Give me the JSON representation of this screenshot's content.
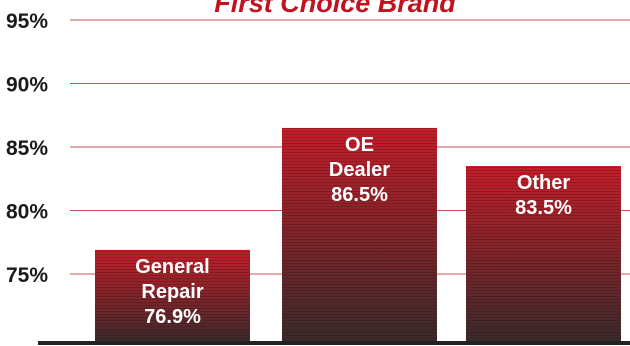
{
  "chart_data": {
    "type": "bar",
    "title": "First Choice Brand",
    "categories": [
      "General Repair",
      "OE Dealer",
      "Other"
    ],
    "values": [
      76.9,
      86.5,
      83.5
    ],
    "bar_labels": [
      [
        "General",
        "Repair",
        "76.9%"
      ],
      [
        "OE",
        "Dealer",
        "86.5%"
      ],
      [
        "Other",
        "83.5%"
      ]
    ],
    "ylim": [
      70,
      95
    ],
    "yticks": [
      75,
      80,
      85,
      90,
      95
    ],
    "ytick_labels": [
      "75%",
      "80%",
      "85%",
      "90%",
      "95%"
    ],
    "grid": true,
    "colors": {
      "title": "#c1121f",
      "bar_top": "#c41e2a",
      "bar_bottom": "#3a2b2b",
      "grid": "#c8505a",
      "axis": "#222222"
    }
  }
}
